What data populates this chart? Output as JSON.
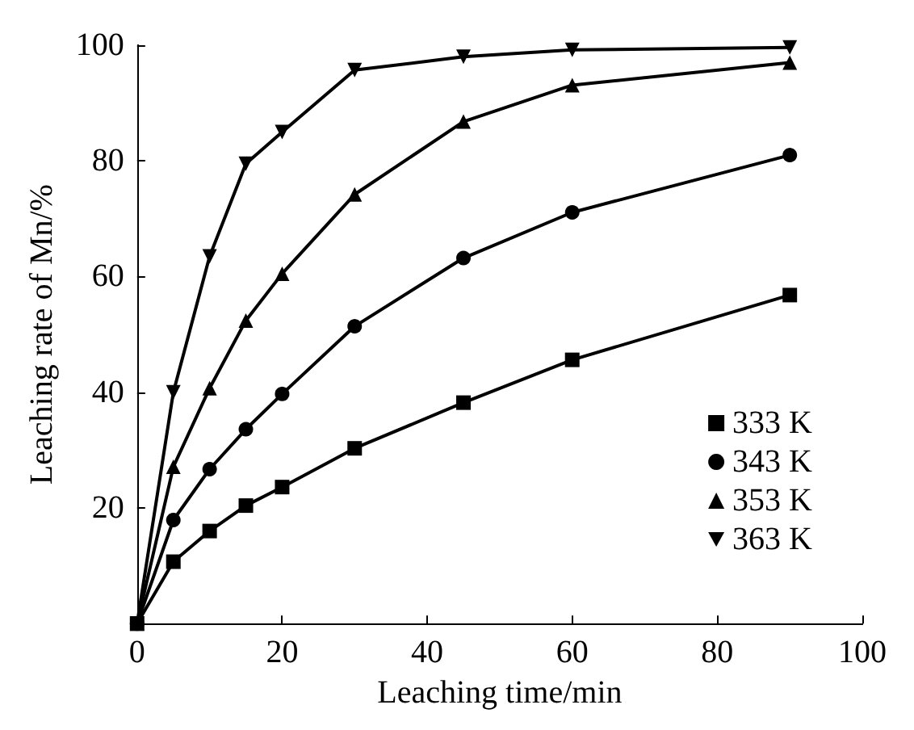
{
  "chart_data": {
    "type": "line",
    "xlabel": "Leaching time/min",
    "ylabel": "Leaching rate of Mn/%",
    "x": [
      0,
      5,
      10,
      15,
      20,
      30,
      45,
      60,
      90
    ],
    "series": [
      {
        "name": "333 K",
        "color": "#000000",
        "marker": "square",
        "values": [
          0,
          10.7,
          16,
          20.4,
          23.6,
          30.3,
          38.2,
          45.6,
          56.8
        ]
      },
      {
        "name": "343 K",
        "color": "#000000",
        "marker": "circle",
        "values": [
          0,
          17.9,
          26.7,
          33.6,
          39.7,
          51.4,
          63.2,
          71.1,
          81
        ]
      },
      {
        "name": "353 K",
        "color": "#000000",
        "marker": "triangle",
        "values": [
          0,
          27.1,
          40.7,
          52.4,
          60.5,
          74.2,
          86.8,
          93.1,
          97
        ]
      },
      {
        "name": "363 K",
        "color": "#000000",
        "marker": "triangle-down",
        "values": [
          0,
          40,
          63.5,
          79.5,
          85,
          95.7,
          98,
          99.2,
          99.6
        ]
      }
    ],
    "xlim": [
      0,
      100
    ],
    "ylim": [
      0,
      100
    ],
    "xticks": [
      0,
      20,
      40,
      60,
      80,
      100
    ],
    "yticks": [
      20,
      40,
      60,
      80,
      100
    ],
    "legend": "bottom right",
    "grid": false,
    "line_style": "solid"
  }
}
